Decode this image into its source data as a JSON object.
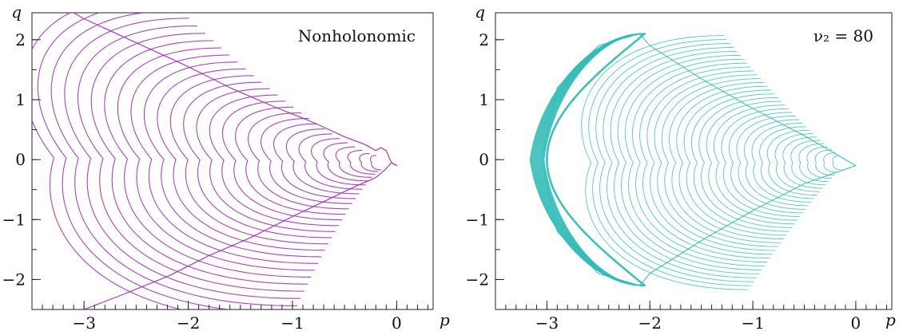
{
  "chart_data": [
    {
      "type": "scatter",
      "title": "",
      "annotation": "Nonholonomic",
      "xlabel": "p",
      "ylabel": "q",
      "xlim": [
        -3.5,
        0.35
      ],
      "ylim": [
        -2.5,
        2.45
      ],
      "xticks": [
        {
          "value": -3,
          "label": "−3"
        },
        {
          "value": -2,
          "label": "−2"
        },
        {
          "value": -1,
          "label": "−1"
        },
        {
          "value": 0,
          "label": "0"
        }
      ],
      "yticks": [
        {
          "value": 2,
          "label": "2"
        },
        {
          "value": 1,
          "label": "1"
        },
        {
          "value": 0,
          "label": "0"
        },
        {
          "value": -1,
          "label": "−1"
        },
        {
          "value": -2,
          "label": "−2"
        }
      ],
      "x_minor_step": 0.1,
      "y_minor_step": 0.5,
      "color": "#a030b8",
      "grid": false,
      "description": "Poincaré section of nested crescent-shaped curves converging to a point near (0, -0.1); curves fan out to the left beyond the plotted range.",
      "series": [
        {
          "values": [
            [
              0.0,
              -0.1
            ],
            [
              -0.05,
              -0.05
            ],
            [
              -0.1,
              0.15
            ],
            [
              -0.15,
              0.2
            ],
            [
              -0.2,
              0.15
            ],
            [
              -0.3,
              0.25
            ],
            [
              -0.5,
              0.38
            ],
            [
              -0.8,
              0.62
            ],
            [
              -1.2,
              0.9
            ],
            [
              -1.6,
              1.2
            ],
            [
              -2.0,
              1.55
            ],
            [
              -2.5,
              1.95
            ],
            [
              -3.0,
              2.35
            ],
            [
              -3.1,
              2.45
            ]
          ]
        },
        {
          "values": [
            [
              0.0,
              -0.1
            ],
            [
              -0.05,
              -0.05
            ],
            [
              -0.1,
              -0.15
            ],
            [
              -0.2,
              -0.3
            ],
            [
              -0.4,
              -0.45
            ],
            [
              -0.7,
              -0.7
            ],
            [
              -1.0,
              -0.95
            ],
            [
              -1.4,
              -1.3
            ],
            [
              -1.8,
              -1.6
            ],
            [
              -2.2,
              -1.95
            ],
            [
              -2.7,
              -2.3
            ],
            [
              -3.0,
              -2.5
            ]
          ]
        }
      ]
    },
    {
      "type": "scatter",
      "title": "",
      "annotation": "ν₂ = 80",
      "xlabel": "p",
      "ylabel": "q",
      "xlim": [
        -3.5,
        0.35
      ],
      "ylim": [
        -2.5,
        2.45
      ],
      "xticks": [
        {
          "value": -3,
          "label": "−3"
        },
        {
          "value": -2,
          "label": "−2"
        },
        {
          "value": -1,
          "label": "−1"
        },
        {
          "value": 0,
          "label": "0"
        }
      ],
      "yticks": [
        {
          "value": 2,
          "label": "2"
        },
        {
          "value": 1,
          "label": "1"
        },
        {
          "value": 0,
          "label": "0"
        },
        {
          "value": -1,
          "label": "−1"
        },
        {
          "value": -2,
          "label": "−2"
        }
      ],
      "x_minor_step": 0.1,
      "y_minor_step": 0.5,
      "color": "#35bdb8",
      "grid": false,
      "description": "Poincaré section of nested crescent curves bounded on the left by a dense envelope reaching p ≈ -3.05 at q = 0 and q ≈ ±2.1 near p ≈ -2.1; curves converge to a point near (0, -0.1).",
      "series": [
        {
          "values": [
            [
              0.0,
              -0.1
            ],
            [
              -0.5,
              0.4
            ],
            [
              -1.0,
              0.85
            ],
            [
              -1.5,
              1.35
            ],
            [
              -2.0,
              1.9
            ],
            [
              -2.1,
              2.1
            ],
            [
              -2.5,
              1.9
            ],
            [
              -2.9,
              1.2
            ],
            [
              -3.05,
              0.0
            ],
            [
              -2.9,
              -1.2
            ],
            [
              -2.5,
              -1.9
            ],
            [
              -2.1,
              -2.1
            ],
            [
              -2.0,
              -1.9
            ],
            [
              -1.5,
              -1.35
            ],
            [
              -1.0,
              -0.85
            ],
            [
              -0.5,
              -0.4
            ],
            [
              0.0,
              -0.1
            ]
          ]
        }
      ]
    }
  ]
}
